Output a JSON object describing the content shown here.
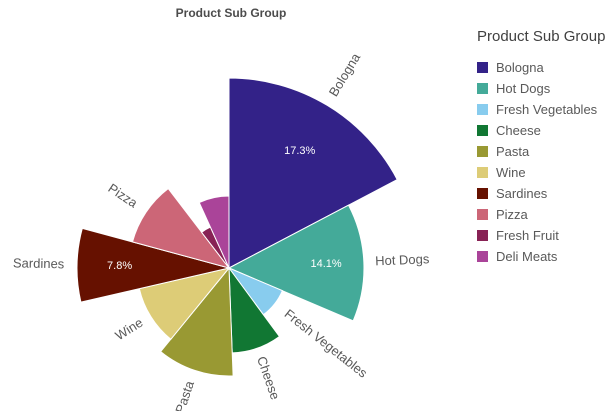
{
  "chart_title": "Product Sub Group",
  "legend": {
    "title": "Product Sub Group"
  },
  "chart_data": {
    "type": "pie",
    "variant": "variable-radius-rose",
    "title": "Product Sub Group",
    "legend_position": "right",
    "direction": "clockwise",
    "start_angle_deg": 0,
    "value_label_color": "#ffffff",
    "slices": [
      {
        "label": "Bologna",
        "percent": 17.3,
        "percent_label": "17.3%",
        "radius_px": 190,
        "color": "#332288",
        "outer_label_shown": true
      },
      {
        "label": "Hot Dogs",
        "percent": 14.1,
        "percent_label": "14.1%",
        "radius_px": 135,
        "color": "#44AA99",
        "outer_label_shown": true
      },
      {
        "label": "Fresh Vegetables",
        "percent": 8.5,
        "percent_label": null,
        "radius_px": 58,
        "color": "#88CCEE",
        "outer_label_shown": true
      },
      {
        "label": "Cheese",
        "percent": 9.5,
        "percent_label": null,
        "radius_px": 85,
        "color": "#117733",
        "outer_label_shown": true
      },
      {
        "label": "Pasta",
        "percent": 11.5,
        "percent_label": null,
        "radius_px": 108,
        "color": "#999933",
        "outer_label_shown": true
      },
      {
        "label": "Wine",
        "percent": 10.5,
        "percent_label": null,
        "radius_px": 92,
        "color": "#DDCC77",
        "outer_label_shown": true
      },
      {
        "label": "Sardines",
        "percent": 7.8,
        "percent_label": "7.8%",
        "radius_px": 152,
        "color": "#661100",
        "outer_label_shown": true
      },
      {
        "label": "Pizza",
        "percent": 10.4,
        "percent_label": null,
        "radius_px": 100,
        "color": "#CC6677",
        "outer_label_shown": true
      },
      {
        "label": "Fresh Fruit",
        "percent": 3.6,
        "percent_label": null,
        "radius_px": 45,
        "color": "#882255",
        "outer_label_shown": false
      },
      {
        "label": "Deli Meats",
        "percent": 6.8,
        "percent_label": null,
        "radius_px": 72,
        "color": "#AA4499",
        "outer_label_shown": false
      }
    ]
  }
}
